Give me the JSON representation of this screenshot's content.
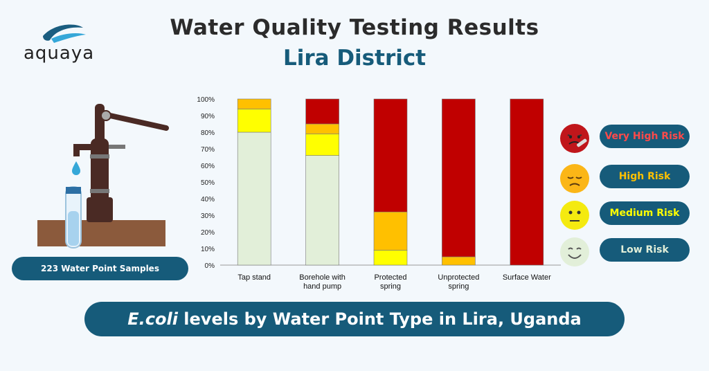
{
  "header": {
    "title": "Water Quality Testing Results",
    "subtitle": "Lira District"
  },
  "logo": {
    "text": "aquaya"
  },
  "samples_label": "223 Water Point Samples",
  "footer": {
    "italic": "E.coli",
    "rest": " levels by Water Point Type in Lira, Uganda"
  },
  "legend": [
    {
      "label": "Very High Risk",
      "color": "#c00000",
      "text_color": "#ff4a4a",
      "face": "very-high-risk-face-icon"
    },
    {
      "label": "High Risk",
      "color": "#ffc000",
      "text_color": "#ffc000",
      "face": "high-risk-face-icon"
    },
    {
      "label": "Medium Risk",
      "color": "#ffff00",
      "text_color": "#ffff00",
      "face": "medium-risk-face-icon"
    },
    {
      "label": "Low Risk",
      "color": "#e2efd9",
      "text_color": "#e2efd9",
      "face": "low-risk-face-icon"
    }
  ],
  "chart_data": {
    "type": "bar",
    "stacked": true,
    "categories": [
      "Tap stand",
      "Borehole with hand pump",
      "Protected spring",
      "Unprotected spring",
      "Surface Water"
    ],
    "category_lines": [
      [
        "Tap stand"
      ],
      [
        "Borehole with",
        "hand pump"
      ],
      [
        "Protected",
        "spring"
      ],
      [
        "Unprotected",
        "spring"
      ],
      [
        "Surface Water"
      ]
    ],
    "yticks": [
      "0%",
      "10%",
      "20%",
      "30%",
      "40%",
      "50%",
      "60%",
      "70%",
      "80%",
      "90%",
      "100%"
    ],
    "ylim": [
      0,
      100
    ],
    "series": [
      {
        "name": "Low Risk",
        "color": "#e2efd9",
        "values": [
          80,
          66,
          0,
          0,
          0
        ]
      },
      {
        "name": "Medium Risk",
        "color": "#ffff00",
        "values": [
          14,
          13,
          9,
          0,
          0
        ]
      },
      {
        "name": "High Risk",
        "color": "#ffc000",
        "values": [
          6,
          6,
          23,
          5,
          0
        ]
      },
      {
        "name": "Very High Risk",
        "color": "#c00000",
        "values": [
          0,
          15,
          68,
          95,
          100
        ]
      }
    ]
  }
}
